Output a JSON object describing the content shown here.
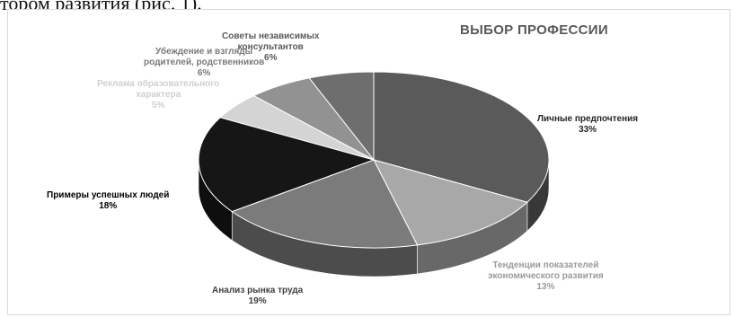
{
  "document": {
    "text_fragment": "тором развития (рис. 1)."
  },
  "chart_data": {
    "type": "pie",
    "title": "ВЫБОР ПРОФЕССИИ",
    "three_d": true,
    "slices": [
      {
        "label_lines": [
          "Личные предпочтения"
        ],
        "value": 33,
        "value_label": "33%",
        "color": "#5a5a5a",
        "label_color": "#262626"
      },
      {
        "label_lines": [
          "Тенденции показателей",
          "экономического развития"
        ],
        "value": 13,
        "value_label": "13%",
        "color": "#a8a8a8",
        "label_color": "#9a9a9a"
      },
      {
        "label_lines": [
          "Анализ рынка труда"
        ],
        "value": 19,
        "value_label": "19%",
        "color": "#7b7b7b",
        "label_color": "#404040"
      },
      {
        "label_lines": [
          "Примеры успешных людей"
        ],
        "value": 18,
        "value_label": "18%",
        "color": "#161616",
        "label_color": "#000000"
      },
      {
        "label_lines": [
          "Реклама образовательного",
          "характера"
        ],
        "value": 5,
        "value_label": "5%",
        "color": "#d4d4d4",
        "label_color": "#d0d0d0"
      },
      {
        "label_lines": [
          "Убеждение и взгляды",
          "родителей, родственников"
        ],
        "value": 6,
        "value_label": "6%",
        "color": "#929292",
        "label_color": "#7a7a7a"
      },
      {
        "label_lines": [
          "Советы независимых",
          "консультантов"
        ],
        "value": 6,
        "value_label": "6%",
        "color": "#6e6e6e",
        "label_color": "#595959"
      }
    ]
  }
}
